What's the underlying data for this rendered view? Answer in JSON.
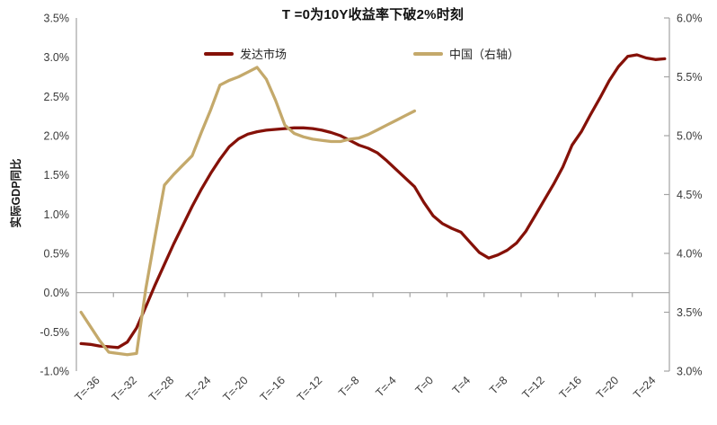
{
  "chart_data": {
    "type": "line",
    "title": "T =0为10Y收益率下破2%时刻",
    "left_axis": {
      "title": "实际GDP同比",
      "min": -1.0,
      "max": 3.5,
      "labels": [
        "3.5%",
        "3.0%",
        "2.5%",
        "2.0%",
        "1.5%",
        "1.0%",
        "0.5%",
        "0.0%",
        "-0.5%",
        "-1.0%"
      ]
    },
    "right_axis": {
      "min": 3.0,
      "max": 6.0,
      "labels": [
        "6.0%",
        "5.5%",
        "5.0%",
        "4.5%",
        "4.0%",
        "3.5%",
        "3.0%"
      ]
    },
    "x_axis": {
      "labels": [
        "T=-36",
        "T=-32",
        "T=-28",
        "T=-24",
        "T=-20",
        "T=-16",
        "T=-12",
        "T=-8",
        "T=-4",
        "T=0",
        "T=4",
        "T=8",
        "T=12",
        "T=16",
        "T=20",
        "T=24"
      ],
      "unit": "quarters relative to T=0"
    },
    "grid": "zero-line only",
    "legend_position": "top",
    "series": [
      {
        "name": "发达市场",
        "axis": "left",
        "color": "#851108",
        "x_start": -36,
        "x_step": 1,
        "values": [
          -0.65,
          -0.66,
          -0.68,
          -0.69,
          -0.7,
          -0.63,
          -0.45,
          -0.18,
          0.1,
          0.36,
          0.62,
          0.86,
          1.1,
          1.32,
          1.52,
          1.7,
          1.86,
          1.96,
          2.02,
          2.05,
          2.07,
          2.08,
          2.09,
          2.1,
          2.1,
          2.09,
          2.07,
          2.04,
          2.0,
          1.94,
          1.88,
          1.84,
          1.78,
          1.68,
          1.57,
          1.46,
          1.35,
          1.15,
          0.98,
          0.88,
          0.82,
          0.77,
          0.64,
          0.51,
          0.44,
          0.48,
          0.54,
          0.63,
          0.78,
          0.98,
          1.18,
          1.38,
          1.6,
          1.88,
          2.05,
          2.27,
          2.48,
          2.7,
          2.88,
          3.01,
          3.03,
          2.99,
          2.97,
          2.98
        ]
      },
      {
        "name": "中国（右轴）",
        "axis": "right",
        "color": "#C4A96B",
        "x_start": -36,
        "x_step": 1,
        "values": [
          3.5,
          3.38,
          3.26,
          3.16,
          3.15,
          3.14,
          3.15,
          3.7,
          4.15,
          4.58,
          4.67,
          4.75,
          4.83,
          5.03,
          5.22,
          5.43,
          5.47,
          5.5,
          5.54,
          5.58,
          5.48,
          5.3,
          5.09,
          5.02,
          4.99,
          4.97,
          4.96,
          4.95,
          4.95,
          4.97,
          4.98,
          5.01,
          5.05,
          5.09,
          5.13,
          5.17,
          5.21
        ]
      }
    ]
  },
  "colors": {
    "axis_line": "#a3a3a3",
    "tick_label": "#3a3a3a"
  }
}
